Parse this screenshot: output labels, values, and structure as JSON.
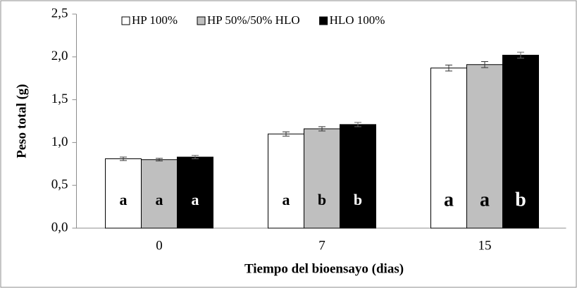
{
  "chart_data": {
    "type": "bar",
    "categories": [
      "0",
      "7",
      "15"
    ],
    "series": [
      {
        "name": "HP 100%",
        "color": "#ffffff",
        "values": [
          0.81,
          1.1,
          1.87
        ],
        "errors": [
          0.02,
          0.025,
          0.035
        ],
        "letters": [
          "a",
          "a",
          "a"
        ]
      },
      {
        "name": "HP 50%/50% HLO",
        "color": "#bfbfbf",
        "values": [
          0.8,
          1.16,
          1.91
        ],
        "errors": [
          0.015,
          0.025,
          0.035
        ],
        "letters": [
          "a",
          "b",
          "a"
        ]
      },
      {
        "name": "HLO 100%",
        "color": "#000000",
        "values": [
          0.83,
          1.21,
          2.02
        ],
        "errors": [
          0.02,
          0.025,
          0.035
        ],
        "letters": [
          "a",
          "b",
          "b"
        ]
      }
    ],
    "xlabel": "Tiempo del bioensayo (dias)",
    "ylabel": "Peso total (g)",
    "ylim": [
      0,
      2.5
    ],
    "yticks": [
      {
        "value": 0,
        "label": "0,0"
      },
      {
        "value": 0.5,
        "label": "0,5"
      },
      {
        "value": 1,
        "label": "1,0"
      },
      {
        "value": 1.5,
        "label": "1,5"
      },
      {
        "value": 2,
        "label": "2,0"
      },
      {
        "value": 2.5,
        "label": "2,5"
      }
    ],
    "legend": "top"
  }
}
